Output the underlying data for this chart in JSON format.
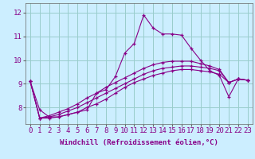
{
  "xlabel": "Windchill (Refroidissement éolien,°C)",
  "background_color": "#cceeff",
  "grid_color": "#99cccc",
  "line_color": "#880088",
  "x_ticks": [
    0,
    1,
    2,
    3,
    4,
    5,
    6,
    7,
    8,
    9,
    10,
    11,
    12,
    13,
    14,
    15,
    16,
    17,
    18,
    19,
    20,
    21,
    22,
    23
  ],
  "y_ticks": [
    8,
    9,
    10,
    11,
    12
  ],
  "ylim": [
    7.3,
    12.4
  ],
  "xlim": [
    -0.5,
    23.5
  ],
  "series": [
    [
      9.1,
      7.9,
      7.6,
      7.6,
      7.7,
      7.8,
      7.9,
      8.6,
      8.75,
      9.3,
      10.3,
      10.7,
      11.9,
      11.35,
      11.1,
      11.1,
      11.05,
      10.5,
      10.0,
      9.55,
      9.35,
      8.45,
      9.2,
      9.15
    ],
    [
      9.1,
      7.55,
      7.55,
      7.6,
      7.7,
      7.8,
      8.0,
      8.15,
      8.35,
      8.6,
      8.85,
      9.05,
      9.2,
      9.35,
      9.45,
      9.55,
      9.6,
      9.6,
      9.55,
      9.5,
      9.4,
      9.05,
      9.2,
      9.15
    ],
    [
      9.1,
      7.55,
      7.6,
      7.7,
      7.85,
      8.0,
      8.2,
      8.4,
      8.6,
      8.8,
      9.0,
      9.2,
      9.4,
      9.55,
      9.65,
      9.7,
      9.75,
      9.75,
      9.7,
      9.65,
      9.55,
      9.05,
      9.2,
      9.15
    ],
    [
      9.1,
      7.55,
      7.65,
      7.8,
      7.95,
      8.15,
      8.4,
      8.6,
      8.85,
      9.05,
      9.25,
      9.45,
      9.65,
      9.8,
      9.9,
      9.95,
      9.95,
      9.95,
      9.85,
      9.75,
      9.6,
      9.05,
      9.2,
      9.15
    ]
  ],
  "tick_fontsize": 6.5,
  "xlabel_fontsize": 6.5
}
